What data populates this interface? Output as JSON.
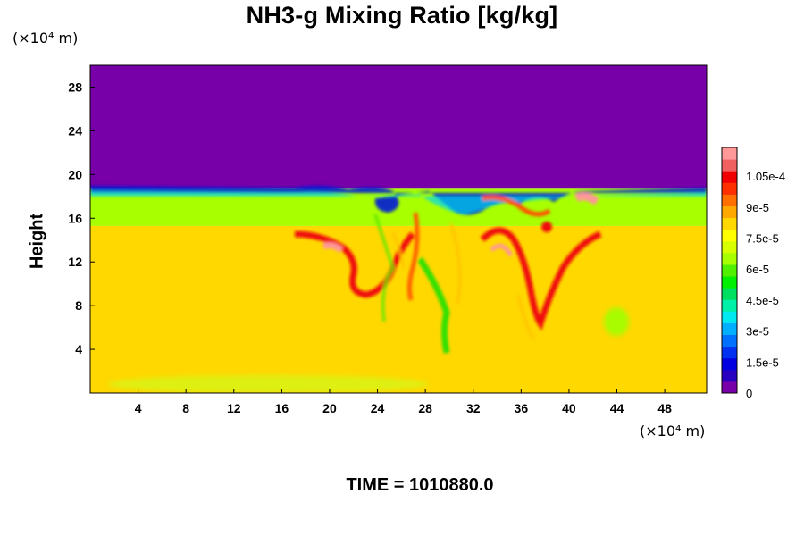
{
  "chart_data": {
    "type": "heatmap",
    "title": "NH3-g Mixing Ratio [kg/kg]",
    "ylabel": "Height",
    "xlabel": "",
    "x_unit": "(×10⁴ m)",
    "y_unit": "(×10⁴ m)",
    "x_ticks": [
      "4",
      "8",
      "12",
      "16",
      "20",
      "24",
      "28",
      "32",
      "36",
      "40",
      "44",
      "48"
    ],
    "y_ticks": [
      "4",
      "8",
      "12",
      "16",
      "20",
      "24",
      "28"
    ],
    "xlim": [
      0,
      51.5
    ],
    "ylim": [
      0,
      30
    ],
    "colorbar": {
      "labels": [
        "0",
        "1.5e-5",
        "3e-5",
        "4.5e-5",
        "6e-5",
        "7.5e-5",
        "9e-5",
        "1.05e-4"
      ],
      "range": [
        0,
        0.000114
      ],
      "colors": [
        "#7800a8",
        "#2a00c0",
        "#0000e0",
        "#0030f0",
        "#0070ff",
        "#00b0ff",
        "#00e8f0",
        "#00f0a8",
        "#00e060",
        "#00f000",
        "#50f000",
        "#a8ff00",
        "#d8ff00",
        "#ffff00",
        "#ffd800",
        "#ffa800",
        "#ff7000",
        "#ff3000",
        "#f00000",
        "#f06060",
        "#ff9898"
      ]
    },
    "fields": {
      "upper_value": 0,
      "band_value": 6e-05,
      "lower_value": 7.8e-05,
      "top_boundary_height": 18.7,
      "band_boundary_height": 15.3
    },
    "annotation": "TIME = 1010880.0"
  }
}
